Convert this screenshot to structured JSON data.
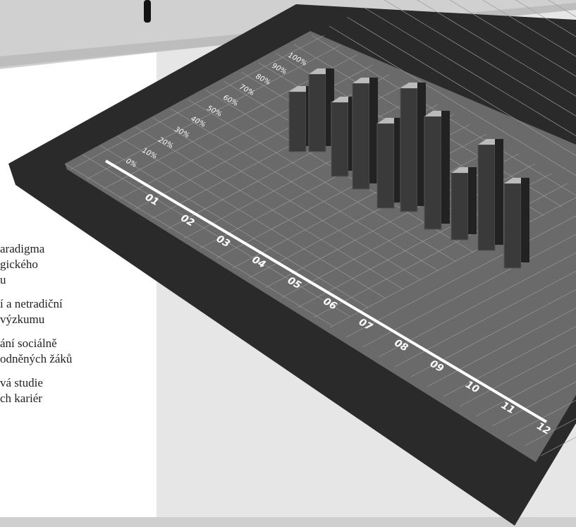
{
  "left_text": {
    "items": [
      {
        "lines": [
          "aradigma",
          "gického",
          "u"
        ]
      },
      {
        "lines": [
          "í a netradiční",
          "výzkumu"
        ]
      },
      {
        "lines": [
          "ání sociálně",
          "odněných žáků"
        ]
      },
      {
        "lines": [
          "vá studie",
          "ch kariér"
        ]
      }
    ]
  },
  "tablet_chart": {
    "y_labels": [
      "0%",
      "10%",
      "20%",
      "30%",
      "40%",
      "50%",
      "60%",
      "70%",
      "80%",
      "90%",
      "100%"
    ],
    "x_labels": [
      "01",
      "02",
      "03",
      "04",
      "05",
      "06",
      "07",
      "08",
      "09",
      "10",
      "11",
      "12"
    ]
  }
}
